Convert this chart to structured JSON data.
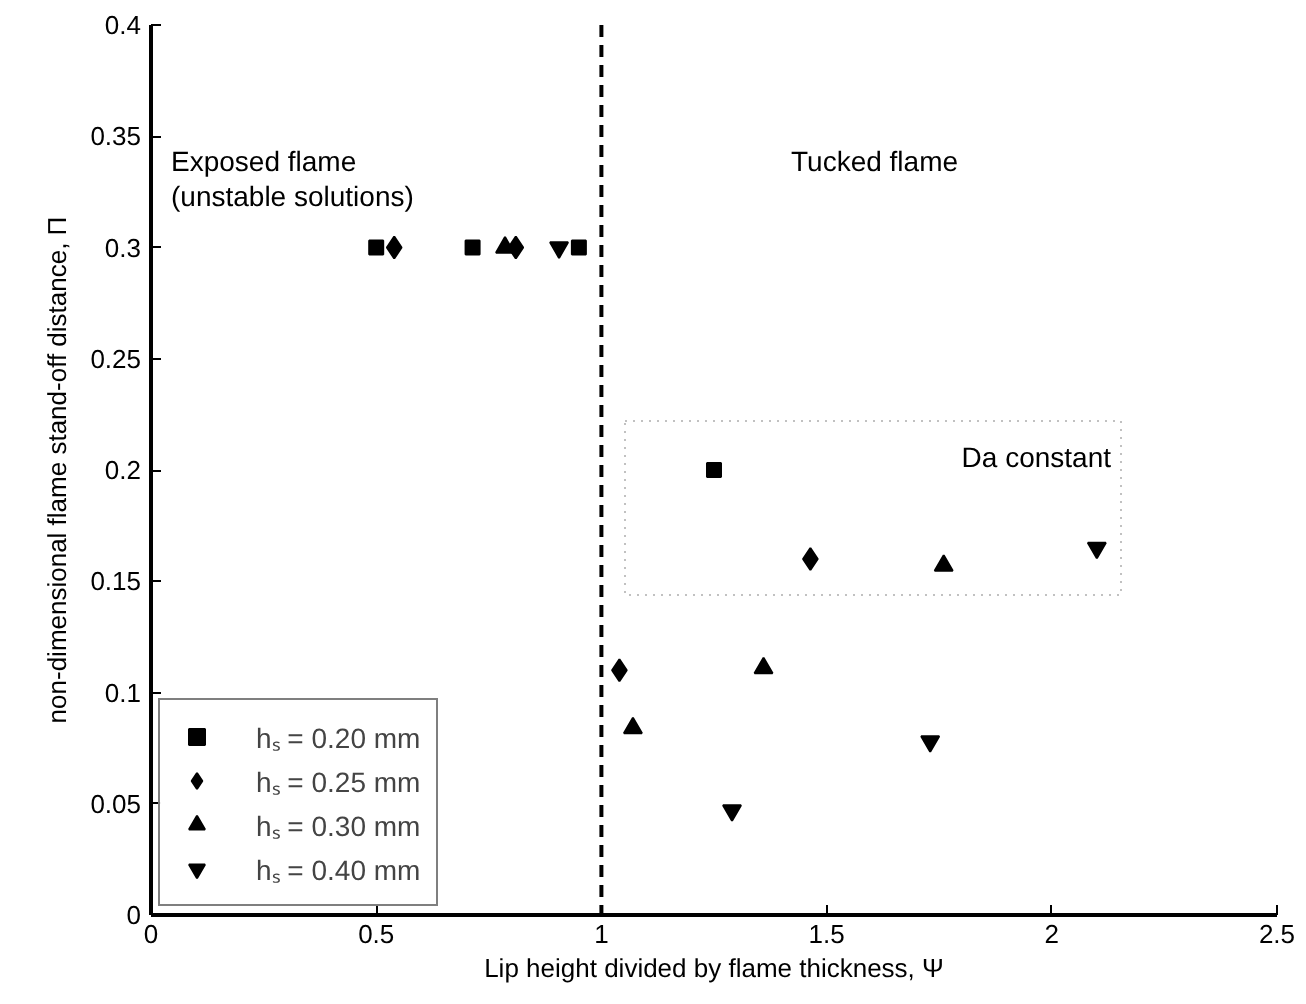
{
  "chart_data": {
    "type": "scatter",
    "xlabel": "Lip height divided by flame thickness, Ψ",
    "ylabel": "non-dimensional flame stand-off distance, Π",
    "xlim": [
      0,
      2.5
    ],
    "ylim": [
      0,
      0.4
    ],
    "xticks": [
      0,
      0.5,
      1,
      1.5,
      2,
      2.5
    ],
    "yticks": [
      0,
      0.05,
      0.1,
      0.15,
      0.2,
      0.25,
      0.3,
      0.35,
      0.4
    ],
    "grid": false,
    "legend": "bottom left",
    "series": [
      {
        "name": "hₛ = 0.20 mm",
        "color": "#000000",
        "x": [
          0.5,
          0.714,
          0.95,
          1.25
        ],
        "values": [
          0.3,
          0.3,
          0.3,
          0.2
        ]
      },
      {
        "name": "hₛ = 0.25 mm",
        "color": "#000000",
        "x": [
          0.54,
          0.81,
          1.04,
          1.464
        ],
        "values": [
          0.3,
          0.3,
          0.11,
          0.16
        ]
      },
      {
        "name": "hₛ = 0.30 mm",
        "color": "#000000",
        "x": [
          0.786,
          1.07,
          1.36,
          1.76
        ],
        "values": [
          0.3,
          0.084,
          0.111,
          0.157
        ]
      },
      {
        "name": "hₛ = 0.40 mm",
        "color": "#000000",
        "x": [
          0.906,
          1.29,
          1.73,
          2.1
        ],
        "values": [
          0.3,
          0.047,
          0.078,
          0.165
        ]
      }
    ],
    "ref_lines": [
      {
        "axis": "x",
        "value": 1,
        "label": null,
        "color": "#000000",
        "line_style": "dashed"
      }
    ],
    "annotations": [
      "Exposed flame\n(unstable solutions)",
      "Tucked flame",
      "Da constant"
    ]
  }
}
